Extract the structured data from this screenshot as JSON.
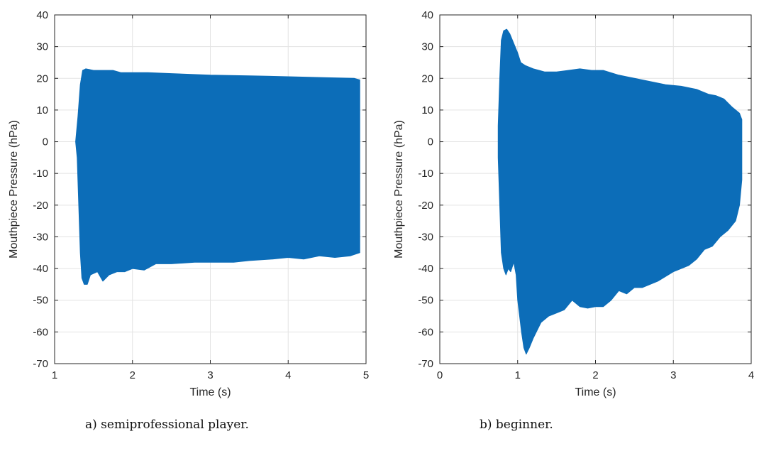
{
  "chart_data": [
    {
      "type": "area",
      "caption": "a) semiprofessional player.",
      "xlabel": "Time (s)",
      "ylabel": "Mouthpiece Pressure (hPa)",
      "xlim": [
        1,
        5
      ],
      "ylim": [
        -70,
        40
      ],
      "xticks": [
        1,
        2,
        3,
        4,
        5
      ],
      "yticks": [
        40,
        30,
        20,
        10,
        0,
        -10,
        -20,
        -30,
        -40,
        -50,
        -60,
        -70
      ],
      "grid": true,
      "color": "#0c6db8",
      "series": [
        {
          "upper": [
            [
              1.27,
              0
            ],
            [
              1.3,
              8
            ],
            [
              1.33,
              18
            ],
            [
              1.36,
              22.5
            ],
            [
              1.4,
              23
            ],
            [
              1.5,
              22.5
            ],
            [
              1.6,
              22.5
            ],
            [
              1.75,
              22.5
            ],
            [
              1.85,
              21.8
            ],
            [
              2.0,
              21.8
            ],
            [
              2.2,
              21.8
            ],
            [
              2.5,
              21.5
            ],
            [
              3.0,
              21
            ],
            [
              3.5,
              20.8
            ],
            [
              4.0,
              20.5
            ],
            [
              4.5,
              20.2
            ],
            [
              4.85,
              20
            ],
            [
              4.92,
              19.5
            ]
          ],
          "lower": [
            [
              1.27,
              0
            ],
            [
              1.29,
              -5
            ],
            [
              1.31,
              -20
            ],
            [
              1.33,
              -35
            ],
            [
              1.35,
              -43
            ],
            [
              1.38,
              -45
            ],
            [
              1.42,
              -45
            ],
            [
              1.46,
              -42
            ],
            [
              1.55,
              -41
            ],
            [
              1.62,
              -44
            ],
            [
              1.7,
              -42
            ],
            [
              1.8,
              -41
            ],
            [
              1.9,
              -41
            ],
            [
              2.0,
              -40
            ],
            [
              2.15,
              -40.5
            ],
            [
              2.3,
              -38.5
            ],
            [
              2.5,
              -38.5
            ],
            [
              2.8,
              -38
            ],
            [
              3.0,
              -38
            ],
            [
              3.3,
              -38
            ],
            [
              3.5,
              -37.5
            ],
            [
              3.8,
              -37
            ],
            [
              4.0,
              -36.5
            ],
            [
              4.2,
              -37
            ],
            [
              4.4,
              -36
            ],
            [
              4.6,
              -36.5
            ],
            [
              4.8,
              -36
            ],
            [
              4.92,
              -35
            ]
          ]
        }
      ]
    },
    {
      "type": "area",
      "caption": "b) beginner.",
      "xlabel": "Time (s)",
      "ylabel": "Mouthpiece Pressure (hPa)",
      "xlim": [
        0,
        4
      ],
      "ylim": [
        -70,
        40
      ],
      "xticks": [
        0,
        1,
        2,
        3,
        4
      ],
      "yticks": [
        40,
        30,
        20,
        10,
        0,
        -10,
        -20,
        -30,
        -40,
        -50,
        -60,
        -70
      ],
      "grid": true,
      "color": "#0c6db8",
      "series": [
        {
          "upper": [
            [
              0.75,
              5
            ],
            [
              0.77,
              20
            ],
            [
              0.79,
              32
            ],
            [
              0.82,
              35
            ],
            [
              0.86,
              35.5
            ],
            [
              0.9,
              34
            ],
            [
              0.95,
              31
            ],
            [
              1.0,
              28
            ],
            [
              1.04,
              25
            ],
            [
              1.1,
              24
            ],
            [
              1.2,
              23
            ],
            [
              1.35,
              22
            ],
            [
              1.5,
              22
            ],
            [
              1.65,
              22.5
            ],
            [
              1.8,
              23
            ],
            [
              1.95,
              22.5
            ],
            [
              2.1,
              22.5
            ],
            [
              2.3,
              21
            ],
            [
              2.5,
              20
            ],
            [
              2.7,
              19
            ],
            [
              2.9,
              18
            ],
            [
              3.1,
              17.5
            ],
            [
              3.3,
              16.5
            ],
            [
              3.45,
              15
            ],
            [
              3.55,
              14.5
            ],
            [
              3.65,
              13.5
            ],
            [
              3.75,
              11
            ],
            [
              3.85,
              9
            ],
            [
              3.88,
              7
            ]
          ],
          "lower": [
            [
              0.75,
              -5
            ],
            [
              0.77,
              -20
            ],
            [
              0.79,
              -35
            ],
            [
              0.82,
              -40
            ],
            [
              0.85,
              -42
            ],
            [
              0.88,
              -40
            ],
            [
              0.91,
              -41
            ],
            [
              0.95,
              -38
            ],
            [
              0.98,
              -42
            ],
            [
              1.0,
              -50
            ],
            [
              1.05,
              -60
            ],
            [
              1.08,
              -65
            ],
            [
              1.11,
              -67
            ],
            [
              1.15,
              -65
            ],
            [
              1.2,
              -62
            ],
            [
              1.3,
              -57
            ],
            [
              1.4,
              -55
            ],
            [
              1.5,
              -54
            ],
            [
              1.6,
              -53
            ],
            [
              1.7,
              -50
            ],
            [
              1.8,
              -52
            ],
            [
              1.9,
              -52.5
            ],
            [
              2.0,
              -52
            ],
            [
              2.1,
              -52
            ],
            [
              2.2,
              -50
            ],
            [
              2.3,
              -47
            ],
            [
              2.4,
              -48
            ],
            [
              2.5,
              -46
            ],
            [
              2.6,
              -46
            ],
            [
              2.8,
              -44
            ],
            [
              3.0,
              -41
            ],
            [
              3.1,
              -40
            ],
            [
              3.2,
              -39
            ],
            [
              3.3,
              -37
            ],
            [
              3.4,
              -34
            ],
            [
              3.5,
              -33
            ],
            [
              3.6,
              -30
            ],
            [
              3.7,
              -28
            ],
            [
              3.8,
              -25
            ],
            [
              3.85,
              -20
            ],
            [
              3.88,
              -12
            ]
          ]
        }
      ]
    }
  ]
}
